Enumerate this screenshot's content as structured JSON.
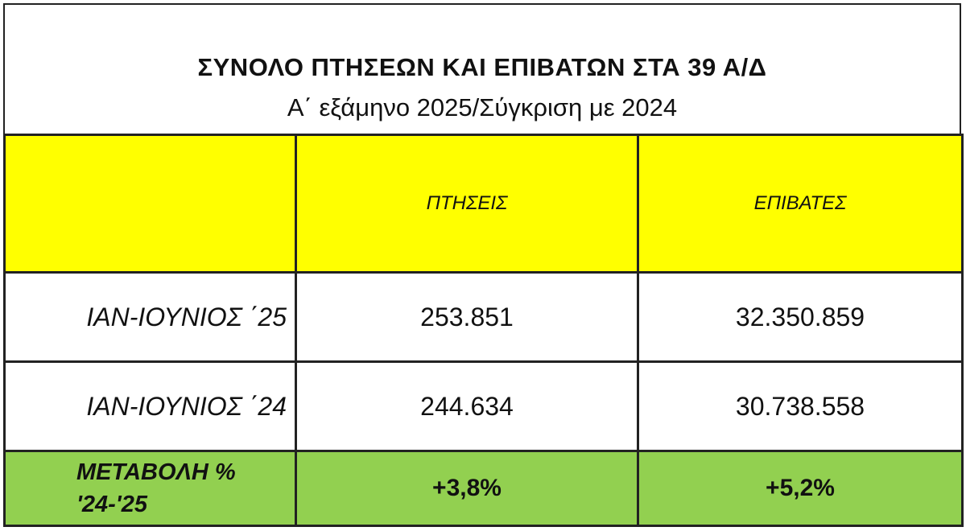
{
  "title": "ΣΥΝΟΛΟ ΠΤΗΣΕΩΝ ΚΑΙ ΕΠΙΒΑΤΩΝ ΣΤΑ 39 Α/Δ",
  "subtitle": "Α΄ εξάμηνο 2025/Σύγκριση με 2024",
  "table": {
    "header": {
      "col1": "",
      "col2": "ΠΤΗΣΕΙΣ",
      "col3": "ΕΠΙΒΑΤΕΣ"
    },
    "rows": [
      {
        "label": "ΙΑΝ-ΙΟΥΝΙΟΣ ΄25",
        "flights": "253.851",
        "passengers": "32.350.859"
      },
      {
        "label": "ΙΑΝ-ΙΟΥΝΙΟΣ ΄24",
        "flights": "244.634",
        "passengers": "30.738.558"
      }
    ],
    "change": {
      "label_line1": "ΜΕΤΑΒΟΛΗ %",
      "label_line2": "'24-'25",
      "flights": "+3,8%",
      "passengers": "+5,2%"
    }
  },
  "colors": {
    "header_bg": "#ffff00",
    "change_bg": "#92d050",
    "border": "#222222"
  }
}
